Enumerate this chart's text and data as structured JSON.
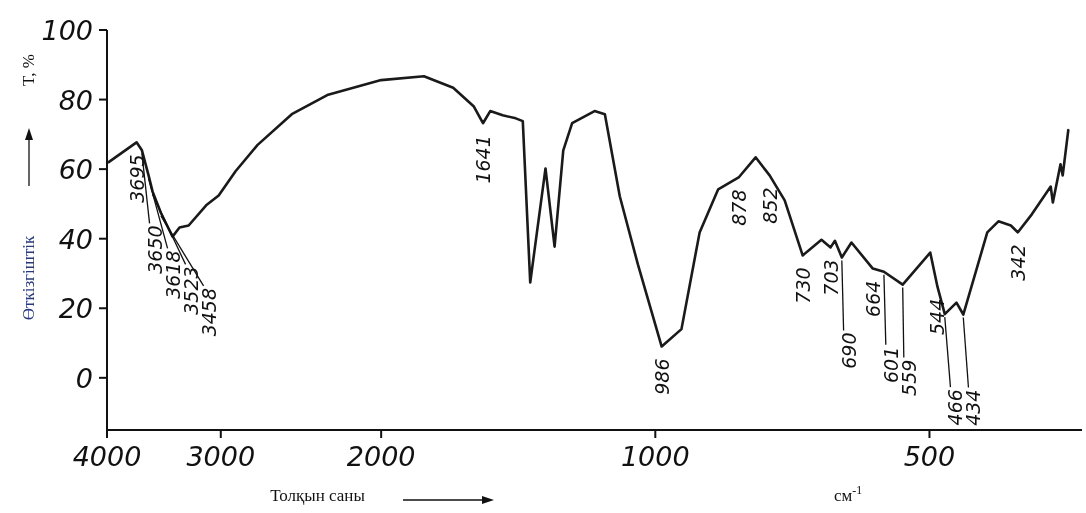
{
  "chart_data": {
    "type": "line",
    "xlabel": "Толқын саны",
    "ylabel": "Өткізгіштік",
    "annotations": [
      "T, %",
      "см$^{-1}$",
      {
        "text": "3695",
        "x": 3712,
        "y": 67.7
      },
      {
        "text": "3650",
        "x": 3662,
        "y": 65.4
      },
      {
        "text": "3618",
        "x": 3601,
        "y": 58.2
      },
      {
        "text": "3523",
        "x": 3565,
        "y": 53.6
      },
      {
        "text": "3458",
        "x": 3490,
        "y": 47.4
      },
      {
        "text": "1641",
        "x": 1546,
        "y": 73.2
      },
      {
        "text": "986",
        "x": 984,
        "y": 9
      },
      {
        "text": "878",
        "x": 810,
        "y": 57.6
      },
      {
        "text": "852",
        "x": 749,
        "y": 58.2
      },
      {
        "text": "730",
        "x": 689,
        "y": 35.2
      },
      {
        "text": "703",
        "x": 642,
        "y": 37.5
      },
      {
        "text": "690",
        "x": 624,
        "y": 34.6
      },
      {
        "text": "664",
        "x": 577,
        "y": 31.4
      },
      {
        "text": "601",
        "x": 561,
        "y": 30.5
      },
      {
        "text": "559",
        "x": 535,
        "y": 26.8
      },
      {
        "text": "544",
        "x": 490,
        "y": 26.2
      },
      {
        "text": "466",
        "x": 481,
        "y": 18.3
      },
      {
        "text": "434",
        "x": 459,
        "y": 18.2
      },
      {
        "text": "342",
        "x": 400,
        "y": 41.8
      }
    ],
    "log": "x",
    "xlim": [
      4000,
      340
    ],
    "xticks": [
      4000,
      3000,
      2000,
      1000,
      500
    ],
    "ylim": [
      -15,
      100
    ],
    "yticks": [
      0,
      20,
      40,
      60,
      80,
      100
    ],
    "marker": "none",
    "line_style": "solid",
    "series": [
      {
        "color": "#1a1a1a",
        "x": [
          3983,
          3712,
          3662,
          3601,
          3565,
          3490,
          3389,
          3330,
          3254,
          3113,
          3016,
          2890,
          2735,
          2507,
          2292,
          2000,
          1795,
          1667,
          1582,
          1546,
          1518,
          1471,
          1423,
          1398,
          1372,
          1320,
          1290,
          1262,
          1234,
          1166,
          1136,
          1094,
          1045,
          984,
          936,
          894,
          853,
          810,
          776,
          749,
          721,
          689,
          657,
          642,
          635,
          624,
          609,
          577,
          561,
          535,
          499,
          490,
          481,
          467,
          459,
          432,
          420,
          407,
          400,
          386,
          368,
          366,
          359,
          357,
          352
        ],
        "values": [
          62,
          67.7,
          65.4,
          58.2,
          53.6,
          47.4,
          40.6,
          43.2,
          43.8,
          49.6,
          52.4,
          59.4,
          66.9,
          75.8,
          81.3,
          85.6,
          86.7,
          83.4,
          78,
          73.2,
          76.7,
          75.5,
          74.6,
          73.8,
          27.4,
          60.2,
          37.7,
          65.4,
          73.2,
          76.7,
          75.8,
          52.2,
          32.6,
          9,
          14,
          41.8,
          54.2,
          57.6,
          63.4,
          58.2,
          51,
          35.2,
          39.7,
          37.5,
          39.4,
          34.6,
          38.9,
          31.4,
          30.5,
          26.8,
          36,
          26.2,
          18.3,
          21.6,
          18.2,
          41.8,
          45,
          43.8,
          41.8,
          47,
          55,
          50.4,
          61.4,
          58.2,
          71.2
        ]
      }
    ]
  }
}
